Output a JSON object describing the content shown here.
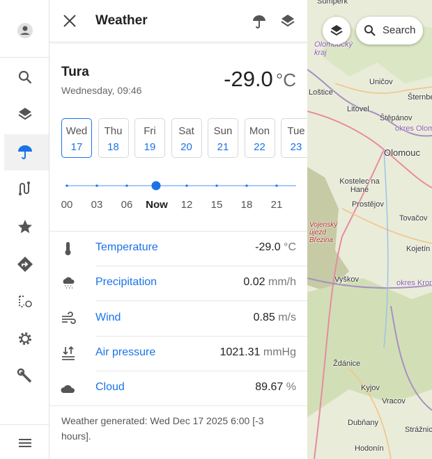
{
  "header": {
    "title": "Weather"
  },
  "location": {
    "name": "Tura",
    "time": "Wednesday, 09:46",
    "temperature": "-29.0",
    "unit": "°C"
  },
  "days": [
    {
      "day": "Wed",
      "date": "17"
    },
    {
      "day": "Thu",
      "date": "18"
    },
    {
      "day": "Fri",
      "date": "19"
    },
    {
      "day": "Sat",
      "date": "20"
    },
    {
      "day": "Sun",
      "date": "21"
    },
    {
      "day": "Mon",
      "date": "22"
    },
    {
      "day": "Tue",
      "date": "23"
    }
  ],
  "timeline": {
    "labels": [
      "00",
      "03",
      "06",
      "Now",
      "12",
      "15",
      "18",
      "21"
    ]
  },
  "rows": [
    {
      "label": "Temperature",
      "value": "-29.0",
      "unit": "°C"
    },
    {
      "label": "Precipitation",
      "value": "0.02",
      "unit": "mm/h"
    },
    {
      "label": "Wind",
      "value": "0.85",
      "unit": "m/s"
    },
    {
      "label": "Air pressure",
      "value": "1021.31",
      "unit": "mmHg"
    },
    {
      "label": "Cloud",
      "value": "89.67",
      "unit": "%"
    }
  ],
  "footer": "Weather generated: Wed Dec 17 2025 6:00 [-3 hours].",
  "map": {
    "search": "Search",
    "labels": [
      "Šumperk",
      "Olomoucký kraj",
      "Uničov",
      "Loštice",
      "Šternberk",
      "Litovel",
      "Štěpánov",
      "okres Olomouc",
      "Olomouc",
      "Kostelec na Hané",
      "Prostějov",
      "Tovačov",
      "Vojenský újezd Březina",
      "Kojetín",
      "Vyškov",
      "okres Kroměříž",
      "Ždánice",
      "Kyjov",
      "Vracov",
      "Dubňany",
      "Strážnice",
      "Hodonín"
    ]
  }
}
